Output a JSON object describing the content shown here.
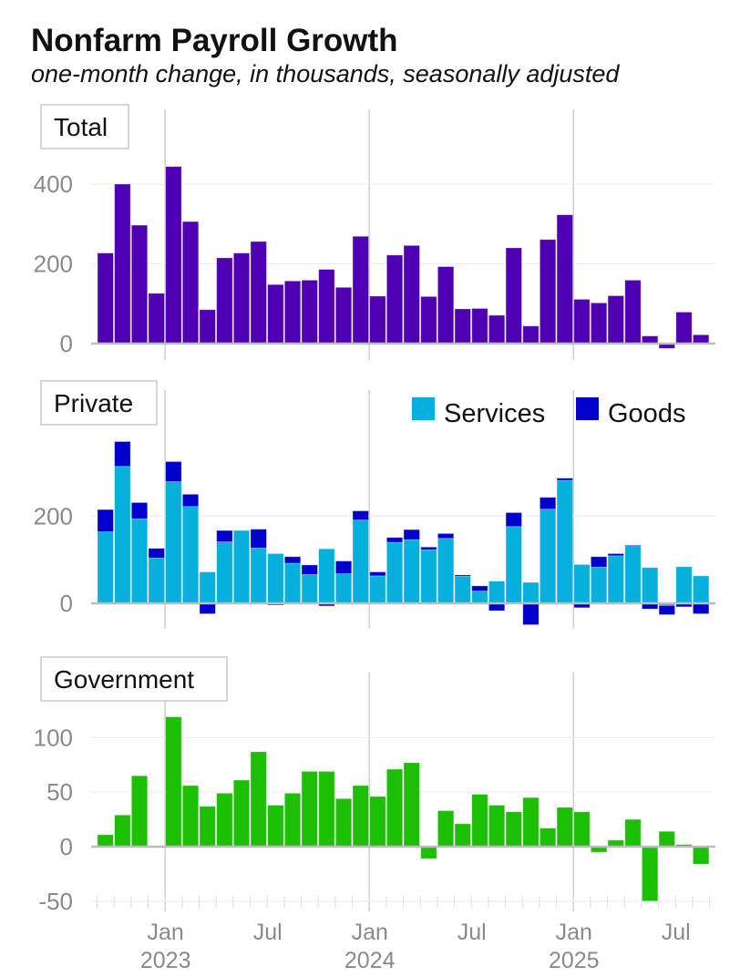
{
  "chart_data": {
    "type": "bar",
    "title": "Nonfarm Payroll Growth",
    "subtitle": "one-month change, in thousands, seasonally adjusted",
    "categories": [
      "2022-09",
      "2022-10",
      "2022-11",
      "2022-12",
      "2023-01",
      "2023-02",
      "2023-03",
      "2023-04",
      "2023-05",
      "2023-06",
      "2023-07",
      "2023-08",
      "2023-09",
      "2023-10",
      "2023-11",
      "2023-12",
      "2024-01",
      "2024-02",
      "2024-03",
      "2024-04",
      "2024-05",
      "2024-06",
      "2024-07",
      "2024-08",
      "2024-09",
      "2024-10",
      "2024-11",
      "2024-12",
      "2025-01",
      "2025-02",
      "2025-03",
      "2025-04",
      "2025-05",
      "2025-06",
      "2025-07",
      "2025-08"
    ],
    "x_ticks": [
      {
        "category_index": 4,
        "label": "Jan",
        "year": "2023"
      },
      {
        "category_index": 10,
        "label": "Jul",
        "year": ""
      },
      {
        "category_index": 16,
        "label": "Jan",
        "year": "2024"
      },
      {
        "category_index": 22,
        "label": "Jul",
        "year": ""
      },
      {
        "category_index": 28,
        "label": "Jan",
        "year": "2025"
      },
      {
        "category_index": 34,
        "label": "Jul",
        "year": ""
      }
    ],
    "panels": [
      {
        "label": "Total",
        "ylim": [
          -15,
          460
        ],
        "yticks": [
          0,
          200,
          400
        ],
        "stacked": false,
        "series": [
          {
            "name": "Total",
            "color": "#4f00b3",
            "values": [
              227,
              400,
              297,
              126,
              444,
              306,
              85,
              215,
              227,
              256,
              148,
              157,
              159,
              186,
              141,
              269,
              119,
              222,
              246,
              118,
              193,
              87,
              88,
              71,
              240,
              44,
              261,
              323,
              111,
              102,
              120,
              159,
              19,
              -12,
              79,
              22
            ]
          }
        ]
      },
      {
        "label": "Private",
        "ylim": [
          -60,
          370
        ],
        "yticks": [
          0,
          200
        ],
        "stacked": true,
        "legend": "top-right",
        "series": [
          {
            "name": "Services",
            "color": "#05b0dc",
            "values": [
              164,
              314,
              194,
              104,
              279,
              222,
              72,
              141,
              167,
              127,
              114,
              92,
              66,
              125,
              68,
              191,
              63,
              140,
              146,
              123,
              149,
              62,
              28,
              51,
              176,
              48,
              216,
              282,
              89,
              83,
              109,
              132,
              82,
              -5,
              84,
              63
            ]
          },
          {
            "name": "Goods",
            "color": "#0000cc",
            "values": [
              51,
              57,
              37,
              22,
              46,
              28,
              -24,
              26,
              -2,
              43,
              -4,
              15,
              22,
              -6,
              29,
              21,
              9,
              11,
              23,
              6,
              11,
              3,
              12,
              -17,
              32,
              -49,
              27,
              5,
              -10,
              24,
              5,
              1,
              -13,
              -21,
              -8,
              -24
            ]
          }
        ]
      },
      {
        "label": "Government",
        "ylim": [
          -50,
          125
        ],
        "yticks": [
          -50,
          0,
          50,
          100
        ],
        "stacked": false,
        "series": [
          {
            "name": "Government",
            "color": "#1dbf05",
            "values": [
              11,
              29,
              65,
              -1,
              119,
              56,
              37,
              49,
              61,
              87,
              38,
              49,
              69,
              69,
              44,
              56,
              46,
              71,
              77,
              -11,
              33,
              21,
              48,
              38,
              32,
              45,
              17,
              36,
              32,
              -5,
              6,
              25,
              -50,
              14,
              2,
              -16
            ]
          }
        ]
      }
    ]
  }
}
